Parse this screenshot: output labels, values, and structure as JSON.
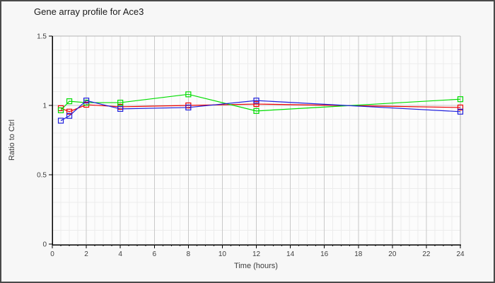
{
  "window": {
    "background": "#f7f7f7",
    "border_color": "#4a4a4a"
  },
  "chart": {
    "title": "Gene array profile for Ace3",
    "xlabel": "Time (hours)",
    "ylabel": "Ratio to Ctrl"
  },
  "chart_data": {
    "type": "line",
    "title": "Gene array profile for Ace3",
    "xlabel": "Time (hours)",
    "ylabel": "Ratio to Ctrl",
    "x": [
      0.5,
      1,
      2,
      4,
      8,
      12,
      24
    ],
    "series": [
      {
        "name": "red",
        "color": "#ee0000",
        "values": [
          0.98,
          0.955,
          1.005,
          0.99,
          1.0,
          1.01,
          0.985
        ]
      },
      {
        "name": "green",
        "color": "#00dd00",
        "values": [
          0.965,
          1.03,
          1.02,
          1.02,
          1.08,
          0.96,
          1.045
        ]
      },
      {
        "name": "blue",
        "color": "#2020dd",
        "values": [
          0.89,
          0.925,
          1.035,
          0.975,
          0.985,
          1.035,
          0.955
        ]
      }
    ],
    "xlim": [
      0,
      24
    ],
    "ylim": [
      0,
      1.5
    ],
    "x_tick_values": [
      0,
      2,
      4,
      6,
      8,
      10,
      12,
      14,
      16,
      18,
      20,
      22,
      24
    ],
    "x_tick_labels": [
      "0",
      "2",
      "4",
      "6",
      "8",
      "10",
      "12",
      "14",
      "16",
      "18",
      "20",
      "22",
      "24"
    ],
    "y_tick_values": [
      0,
      0.5,
      1,
      1.5
    ],
    "y_tick_labels": [
      "0",
      "0.5",
      "1",
      "1.5"
    ],
    "x_minor_step": 0.5,
    "y_minor_step": 0.1,
    "marker": "open-square",
    "legend": "none",
    "grid": true
  },
  "colors": {
    "plot_bg": "#fcfcfc",
    "grid_minor": "#ececec",
    "grid_major": "#c9c9c9",
    "plot_border": "#b3b3b3",
    "axis": "#000000",
    "tick_text": "#3f3f3f"
  }
}
